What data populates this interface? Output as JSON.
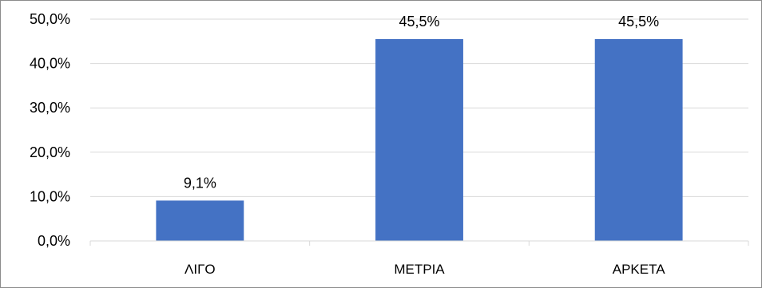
{
  "chart_data": {
    "type": "bar",
    "categories": [
      "ΛΙΓΟ",
      "ΜΕΤΡΙΑ",
      "ΑΡΚΕΤΑ"
    ],
    "values": [
      9.1,
      45.5,
      45.5
    ],
    "data_labels": [
      "9,1%",
      "45,5%",
      "45,5%"
    ],
    "ylim": [
      0,
      50
    ],
    "y_ticks": [
      0,
      10,
      20,
      30,
      40,
      50
    ],
    "y_tick_labels": [
      "0,0%",
      "10,0%",
      "20,0%",
      "30,0%",
      "40,0%",
      "50,0%"
    ],
    "grid": true,
    "legend": "none",
    "bar_color": "#4472C4",
    "gridline_color": "#d9d9d9"
  }
}
